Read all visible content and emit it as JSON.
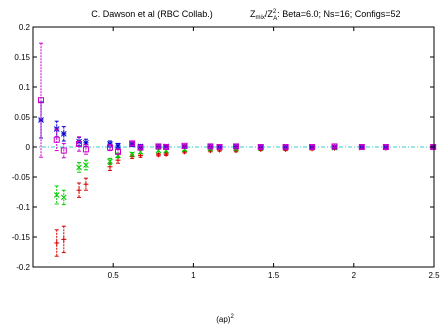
{
  "chart_data": {
    "type": "scatter",
    "title_left": "C. Dawson et al (RBC Collab.)",
    "title_right": {
      "ratio_num_main": "Z",
      "ratio_num_sub": "mix",
      "ratio_den_main": "Z",
      "ratio_den_sup": "2",
      "ratio_den_sub": "A",
      "details": ":  Beta=6.0; Ns=16; Configs=52"
    },
    "xlabel": {
      "main": "(ap)",
      "sup": "2"
    },
    "ylabel": "",
    "xlim": [
      0,
      2.5
    ],
    "ylim": [
      -0.2,
      0.2
    ],
    "xticks": [
      {
        "value": 0.5,
        "label": "0.5"
      },
      {
        "value": 1.0,
        "label": "1"
      },
      {
        "value": 1.5,
        "label": "1.5"
      },
      {
        "value": 2.0,
        "label": "2"
      },
      {
        "value": 2.5,
        "label": "2.5"
      }
    ],
    "yticks": [
      {
        "value": 0.2,
        "label": "0.2"
      },
      {
        "value": 0.15,
        "label": "0.15"
      },
      {
        "value": 0.1,
        "label": "0.1"
      },
      {
        "value": 0.05,
        "label": "0.05"
      },
      {
        "value": 0.0,
        "label": "0"
      },
      {
        "value": -0.05,
        "label": "-0.05"
      },
      {
        "value": -0.1,
        "label": "-0.1"
      },
      {
        "value": -0.15,
        "label": "-0.15"
      },
      {
        "value": -0.2,
        "label": "-0.2"
      }
    ],
    "reference_line": {
      "y": 0,
      "color": "#33cccc"
    },
    "grid": false,
    "series": [
      {
        "marker": "plus",
        "color": "#d40000",
        "points": [
          {
            "x": 0.148,
            "y": -0.16,
            "err": 0.022
          },
          {
            "x": 0.192,
            "y": -0.154,
            "err": 0.022
          },
          {
            "x": 0.287,
            "y": -0.072,
            "err": 0.012
          },
          {
            "x": 0.33,
            "y": -0.062,
            "err": 0.01
          },
          {
            "x": 0.48,
            "y": -0.033,
            "err": 0.006
          },
          {
            "x": 0.53,
            "y": -0.022,
            "err": 0.005
          },
          {
            "x": 0.618,
            "y": -0.016,
            "err": 0.003
          },
          {
            "x": 0.67,
            "y": -0.014,
            "err": 0.003
          },
          {
            "x": 0.782,
            "y": -0.013,
            "err": 0.002
          },
          {
            "x": 0.83,
            "y": -0.012,
            "err": 0.002
          },
          {
            "x": 0.945,
            "y": -0.008,
            "err": 0.002
          },
          {
            "x": 1.106,
            "y": -0.006,
            "err": 0.002
          },
          {
            "x": 1.163,
            "y": -0.005,
            "err": 0.002
          },
          {
            "x": 1.266,
            "y": -0.006,
            "err": 0.002
          },
          {
            "x": 1.42,
            "y": -0.004,
            "err": 0.002
          },
          {
            "x": 1.575,
            "y": -0.004,
            "err": 0.002
          },
          {
            "x": 1.74,
            "y": -0.003,
            "err": 0.002
          },
          {
            "x": 1.88,
            "y": -0.002,
            "err": 0.002
          },
          {
            "x": 2.05,
            "y": -0.001,
            "err": 0.002
          },
          {
            "x": 2.2,
            "y": -0.002,
            "err": 0.002
          },
          {
            "x": 2.495,
            "y": -0.001,
            "err": 0.002
          }
        ]
      },
      {
        "marker": "cross",
        "color": "#00cc00",
        "points": [
          {
            "x": 0.148,
            "y": -0.08,
            "err": 0.015
          },
          {
            "x": 0.192,
            "y": -0.084,
            "err": 0.012
          },
          {
            "x": 0.287,
            "y": -0.034,
            "err": 0.008
          },
          {
            "x": 0.33,
            "y": -0.03,
            "err": 0.008
          },
          {
            "x": 0.48,
            "y": -0.024,
            "err": 0.005
          },
          {
            "x": 0.53,
            "y": -0.014,
            "err": 0.004
          },
          {
            "x": 0.618,
            "y": -0.012,
            "err": 0.003
          },
          {
            "x": 0.67,
            "y": -0.008,
            "err": 0.003
          },
          {
            "x": 0.782,
            "y": -0.006,
            "err": 0.002
          },
          {
            "x": 0.83,
            "y": -0.006,
            "err": 0.002
          },
          {
            "x": 0.945,
            "y": -0.004,
            "err": 0.002
          },
          {
            "x": 1.106,
            "y": -0.003,
            "err": 0.002
          },
          {
            "x": 1.163,
            "y": -0.002,
            "err": 0.002
          },
          {
            "x": 1.266,
            "y": -0.003,
            "err": 0.002
          },
          {
            "x": 1.42,
            "y": -0.002,
            "err": 0.002
          },
          {
            "x": 1.575,
            "y": -0.002,
            "err": 0.002
          },
          {
            "x": 1.74,
            "y": -0.001,
            "err": 0.002
          },
          {
            "x": 1.88,
            "y": -0.001,
            "err": 0.002
          },
          {
            "x": 2.05,
            "y": -0.001,
            "err": 0.002
          },
          {
            "x": 2.2,
            "y": 0.0,
            "err": 0.002
          },
          {
            "x": 2.495,
            "y": 0.0,
            "err": 0.002
          }
        ]
      },
      {
        "marker": "star",
        "color": "#0000d4",
        "points": [
          {
            "x": 0.05,
            "y": 0.045,
            "err": 0.03
          },
          {
            "x": 0.148,
            "y": 0.03,
            "err": 0.013
          },
          {
            "x": 0.192,
            "y": 0.022,
            "err": 0.012
          },
          {
            "x": 0.287,
            "y": 0.009,
            "err": 0.007
          },
          {
            "x": 0.33,
            "y": 0.007,
            "err": 0.006
          },
          {
            "x": 0.48,
            "y": 0.005,
            "err": 0.005
          },
          {
            "x": 0.53,
            "y": 0.002,
            "err": 0.004
          },
          {
            "x": 0.618,
            "y": 0.004,
            "err": 0.003
          },
          {
            "x": 0.67,
            "y": 0.001,
            "err": 0.003
          },
          {
            "x": 0.782,
            "y": 0.001,
            "err": 0.002
          },
          {
            "x": 0.83,
            "y": 0.001,
            "err": 0.002
          },
          {
            "x": 0.945,
            "y": 0.001,
            "err": 0.002
          },
          {
            "x": 1.106,
            "y": 0.001,
            "err": 0.002
          },
          {
            "x": 1.163,
            "y": 0.0,
            "err": 0.002
          },
          {
            "x": 1.266,
            "y": 0.001,
            "err": 0.002
          },
          {
            "x": 1.42,
            "y": 0.0,
            "err": 0.002
          },
          {
            "x": 1.575,
            "y": 0.0,
            "err": 0.002
          },
          {
            "x": 1.74,
            "y": 0.0,
            "err": 0.002
          },
          {
            "x": 1.88,
            "y": 0.0,
            "err": 0.002
          },
          {
            "x": 2.05,
            "y": 0.0,
            "err": 0.002
          },
          {
            "x": 2.2,
            "y": 0.0,
            "err": 0.002
          },
          {
            "x": 2.495,
            "y": 0.0,
            "err": 0.002
          }
        ]
      },
      {
        "marker": "square",
        "color": "#cc00cc",
        "points": [
          {
            "x": 0.05,
            "y": 0.078,
            "err": 0.095
          },
          {
            "x": 0.148,
            "y": 0.012,
            "err": 0.018
          },
          {
            "x": 0.192,
            "y": -0.006,
            "err": 0.012
          },
          {
            "x": 0.287,
            "y": 0.005,
            "err": 0.012
          },
          {
            "x": 0.33,
            "y": -0.004,
            "err": 0.008
          },
          {
            "x": 0.48,
            "y": -0.001,
            "err": 0.005
          },
          {
            "x": 0.53,
            "y": -0.008,
            "err": 0.004
          },
          {
            "x": 0.618,
            "y": 0.006,
            "err": 0.003
          },
          {
            "x": 0.67,
            "y": -0.001,
            "err": 0.003
          },
          {
            "x": 0.782,
            "y": 0.001,
            "err": 0.002
          },
          {
            "x": 0.83,
            "y": 0.0,
            "err": 0.002
          },
          {
            "x": 0.945,
            "y": 0.002,
            "err": 0.002
          },
          {
            "x": 1.106,
            "y": 0.001,
            "err": 0.002
          },
          {
            "x": 1.163,
            "y": 0.0,
            "err": 0.002
          },
          {
            "x": 1.266,
            "y": 0.001,
            "err": 0.002
          },
          {
            "x": 1.42,
            "y": 0.0,
            "err": 0.002
          },
          {
            "x": 1.575,
            "y": 0.0,
            "err": 0.002
          },
          {
            "x": 1.74,
            "y": 0.0,
            "err": 0.002
          },
          {
            "x": 1.88,
            "y": 0.001,
            "err": 0.002
          },
          {
            "x": 2.05,
            "y": 0.0,
            "err": 0.002
          },
          {
            "x": 2.2,
            "y": 0.0,
            "err": 0.002
          },
          {
            "x": 2.495,
            "y": 0.0,
            "err": 0.002
          }
        ]
      }
    ]
  }
}
